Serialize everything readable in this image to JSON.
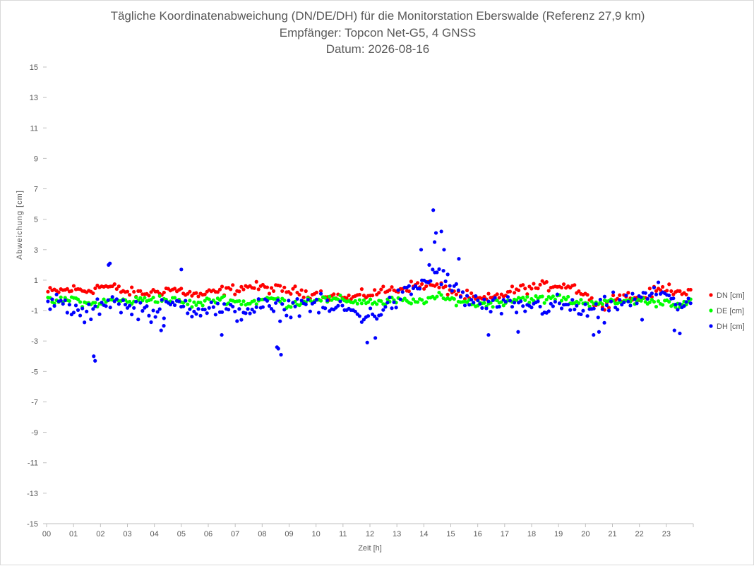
{
  "chart_data": {
    "type": "scatter",
    "title": "Tägliche Koordinatenabweichung (DN/DE/DH) für die Monitorstation Eberswalde (Referenz 27,9 km)",
    "subtitle": "Empfänger: Topcon Net-G5, 4 GNSS",
    "date_line": "Datum: 2026-08-16",
    "xlabel": "Zeit [h]",
    "ylabel": "Abweichung [cm]",
    "xlim": [
      0,
      24
    ],
    "ylim": [
      -15,
      15
    ],
    "x_tick_labels": [
      "00",
      "01",
      "02",
      "03",
      "04",
      "05",
      "06",
      "07",
      "08",
      "09",
      "10",
      "11",
      "12",
      "13",
      "14",
      "15",
      "16",
      "17",
      "18",
      "19",
      "20",
      "21",
      "22",
      "23"
    ],
    "y_ticks": [
      15,
      13,
      11,
      9,
      7,
      5,
      3,
      1,
      -1,
      -3,
      -5,
      -7,
      -9,
      -11,
      -13,
      -15
    ],
    "grid": false,
    "legend": "right",
    "series": [
      {
        "name": "DN [cm]",
        "color": "#ff0000",
        "anchors": [
          [
            0,
            0.2
          ],
          [
            0.5,
            0.3
          ],
          [
            1,
            0.4
          ],
          [
            1.5,
            0.3
          ],
          [
            2,
            0.6
          ],
          [
            2.5,
            0.5
          ],
          [
            3,
            0.2
          ],
          [
            3.5,
            0.1
          ],
          [
            4,
            0.2
          ],
          [
            4.5,
            0.4
          ],
          [
            5,
            0.3
          ],
          [
            5.5,
            0.0
          ],
          [
            6,
            0.1
          ],
          [
            6.5,
            0.3
          ],
          [
            7,
            0.4
          ],
          [
            7.5,
            0.6
          ],
          [
            8,
            0.5
          ],
          [
            8.5,
            0.4
          ],
          [
            9,
            0.3
          ],
          [
            9.5,
            0.2
          ],
          [
            10,
            0.1
          ],
          [
            10.5,
            0.0
          ],
          [
            11,
            -0.2
          ],
          [
            11.5,
            -0.1
          ],
          [
            12,
            0.1
          ],
          [
            12.5,
            0.3
          ],
          [
            13,
            0.4
          ],
          [
            13.5,
            0.6
          ],
          [
            14,
            0.7
          ],
          [
            14.5,
            0.6
          ],
          [
            15,
            0.3
          ],
          [
            15.5,
            0.0
          ],
          [
            16,
            -0.3
          ],
          [
            16.5,
            -0.2
          ],
          [
            17,
            0.1
          ],
          [
            17.5,
            0.4
          ],
          [
            18,
            0.5
          ],
          [
            18.5,
            0.6
          ],
          [
            19,
            0.7
          ],
          [
            19.5,
            0.6
          ],
          [
            20,
            0.1
          ],
          [
            20.5,
            -0.8
          ],
          [
            21,
            -0.2
          ],
          [
            21.5,
            0.0
          ],
          [
            22,
            -0.3
          ],
          [
            22.5,
            0.2
          ],
          [
            23,
            0.5
          ],
          [
            23.5,
            0.3
          ],
          [
            23.9,
            0.2
          ]
        ],
        "noise": 0.28
      },
      {
        "name": "DE [cm]",
        "color": "#00ff00",
        "anchors": [
          [
            0,
            -0.4
          ],
          [
            0.5,
            -0.4
          ],
          [
            1,
            -0.2
          ],
          [
            1.5,
            -0.6
          ],
          [
            2,
            -0.5
          ],
          [
            2.5,
            -0.3
          ],
          [
            3,
            -0.4
          ],
          [
            3.5,
            -0.3
          ],
          [
            4,
            -0.2
          ],
          [
            4.5,
            -0.3
          ],
          [
            5,
            -0.4
          ],
          [
            5.5,
            -0.6
          ],
          [
            6,
            -0.4
          ],
          [
            6.5,
            -0.2
          ],
          [
            7,
            -0.4
          ],
          [
            7.5,
            -0.5
          ],
          [
            8,
            -0.3
          ],
          [
            8.5,
            -0.2
          ],
          [
            9,
            -0.6
          ],
          [
            9.5,
            -0.4
          ],
          [
            10,
            -0.2
          ],
          [
            10.5,
            -0.3
          ],
          [
            11,
            -0.3
          ],
          [
            11.5,
            -0.4
          ],
          [
            12,
            -0.4
          ],
          [
            12.5,
            -0.5
          ],
          [
            13,
            -0.3
          ],
          [
            13.5,
            -0.5
          ],
          [
            14,
            -0.3
          ],
          [
            14.5,
            -0.1
          ],
          [
            15,
            -0.3
          ],
          [
            15.5,
            -0.4
          ],
          [
            16,
            -0.6
          ],
          [
            16.5,
            -0.5
          ],
          [
            17,
            -0.4
          ],
          [
            17.5,
            -0.2
          ],
          [
            18,
            -0.2
          ],
          [
            18.5,
            -0.3
          ],
          [
            19,
            -0.1
          ],
          [
            19.5,
            -0.4
          ],
          [
            20,
            -0.5
          ],
          [
            20.5,
            -0.4
          ],
          [
            21,
            -0.5
          ],
          [
            21.5,
            -0.4
          ],
          [
            22,
            -0.3
          ],
          [
            22.5,
            -0.5
          ],
          [
            23,
            -0.4
          ],
          [
            23.5,
            -0.6
          ],
          [
            23.9,
            -0.5
          ]
        ],
        "noise": 0.22
      },
      {
        "name": "DH [cm]",
        "color": "#0000ff",
        "anchors": [
          [
            0,
            -0.6
          ],
          [
            0.5,
            -0.5
          ],
          [
            1,
            -1.0
          ],
          [
            1.5,
            -1.4
          ],
          [
            2,
            -0.6
          ],
          [
            2.5,
            -0.2
          ],
          [
            3,
            -0.9
          ],
          [
            3.5,
            -0.8
          ],
          [
            4,
            -1.2
          ],
          [
            4.5,
            -0.8
          ],
          [
            5,
            -0.5
          ],
          [
            5.5,
            -0.9
          ],
          [
            6,
            -0.8
          ],
          [
            6.5,
            -1.0
          ],
          [
            7,
            -1.2
          ],
          [
            7.5,
            -0.9
          ],
          [
            8,
            -0.7
          ],
          [
            8.5,
            -1.0
          ],
          [
            9,
            -0.8
          ],
          [
            9.5,
            -0.5
          ],
          [
            10,
            -0.6
          ],
          [
            10.5,
            -0.9
          ],
          [
            11,
            -0.8
          ],
          [
            11.5,
            -1.2
          ],
          [
            12,
            -1.4
          ],
          [
            12.5,
            -0.9
          ],
          [
            13,
            -0.3
          ],
          [
            13.5,
            0.3
          ],
          [
            14,
            0.8
          ],
          [
            14.5,
            1.6
          ],
          [
            15,
            0.6
          ],
          [
            15.5,
            -0.2
          ],
          [
            16,
            -0.5
          ],
          [
            16.5,
            -0.8
          ],
          [
            17,
            -0.7
          ],
          [
            17.5,
            -0.9
          ],
          [
            18,
            -0.6
          ],
          [
            18.5,
            -0.8
          ],
          [
            19,
            -0.6
          ],
          [
            19.5,
            -0.8
          ],
          [
            20,
            -1.1
          ],
          [
            20.5,
            -1.0
          ],
          [
            21,
            -0.5
          ],
          [
            21.5,
            -0.4
          ],
          [
            22,
            -0.3
          ],
          [
            22.5,
            0.1
          ],
          [
            23,
            0.3
          ],
          [
            23.5,
            -0.7
          ],
          [
            23.9,
            -0.4
          ]
        ],
        "noise": 0.55,
        "outliers": [
          [
            1.75,
            -4.0
          ],
          [
            1.8,
            -4.3
          ],
          [
            2.3,
            2.0
          ],
          [
            2.35,
            2.1
          ],
          [
            4.25,
            -2.3
          ],
          [
            4.35,
            -2.0
          ],
          [
            5.0,
            1.7
          ],
          [
            6.5,
            -2.6
          ],
          [
            8.55,
            -3.4
          ],
          [
            8.6,
            -3.5
          ],
          [
            8.7,
            -3.9
          ],
          [
            11.9,
            -3.1
          ],
          [
            12.2,
            -2.8
          ],
          [
            13.9,
            3.0
          ],
          [
            14.2,
            2.0
          ],
          [
            14.35,
            5.6
          ],
          [
            14.45,
            4.1
          ],
          [
            14.65,
            4.2
          ],
          [
            14.75,
            3.0
          ],
          [
            14.4,
            3.5
          ],
          [
            15.3,
            2.4
          ],
          [
            16.4,
            -2.6
          ],
          [
            17.5,
            -2.4
          ],
          [
            20.3,
            -2.6
          ],
          [
            20.5,
            -2.4
          ],
          [
            20.7,
            -1.8
          ],
          [
            23.5,
            -2.5
          ],
          [
            23.3,
            -2.3
          ],
          [
            22.1,
            -1.6
          ]
        ]
      }
    ]
  }
}
